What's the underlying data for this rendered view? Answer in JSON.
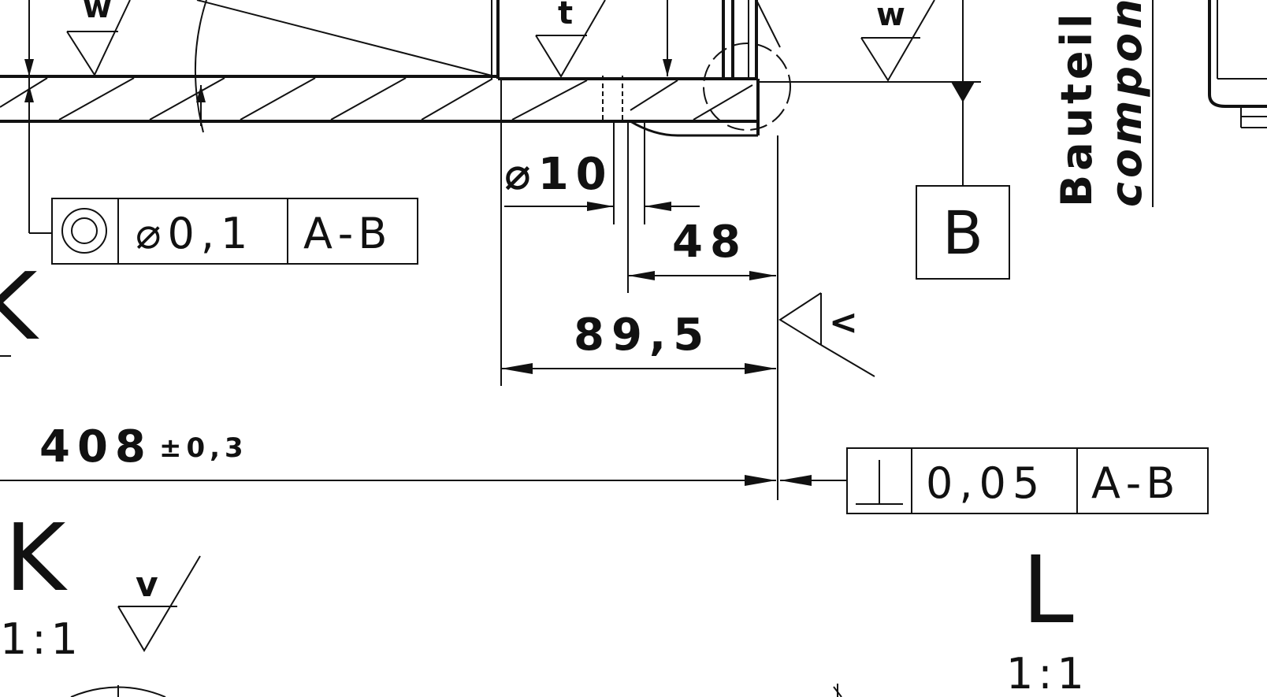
{
  "surface_symbols": {
    "w_top_left": "w",
    "t_top": "t",
    "w_top_right": "w",
    "v_bottom": "v",
    "weld_or_roughness_mark": "<"
  },
  "dimensions": {
    "bore_diameter": "⌀10",
    "hole_offset": "48",
    "step_length": "89,5",
    "overall_length": "408",
    "overall_tolerance": "±0,3"
  },
  "feature_control_frames": {
    "concentricity": {
      "tolerance": "⌀0,1",
      "datum": "A-B"
    },
    "perpendicularity": {
      "tolerance": "0,05",
      "datum": "A-B"
    }
  },
  "datums": {
    "datum_b": "B"
  },
  "views": {
    "detail_k": {
      "label": "K",
      "scale": "1:1",
      "partial_label": "K"
    },
    "detail_l": {
      "label": "L",
      "scale": "1:1"
    }
  },
  "title_text": {
    "german": "Bauteil",
    "english": "componen"
  }
}
